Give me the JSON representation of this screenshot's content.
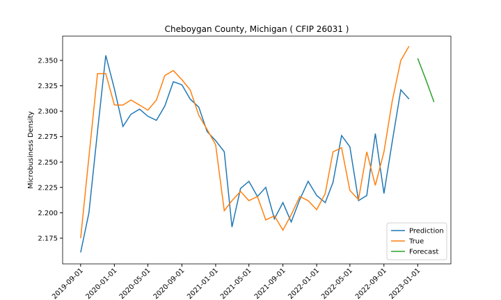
{
  "chart_data": {
    "type": "line",
    "title": "Cheboygan County, Michigan ( CFIP 26031 )",
    "y_label": "Microbusiness Density",
    "x": [
      "2019-09-01",
      "2019-10-01",
      "2019-11-01",
      "2019-12-01",
      "2020-01-01",
      "2020-02-01",
      "2020-03-01",
      "2020-04-01",
      "2020-05-01",
      "2020-06-01",
      "2020-07-01",
      "2020-08-01",
      "2020-09-01",
      "2020-10-01",
      "2020-11-01",
      "2020-12-01",
      "2021-01-01",
      "2021-02-01",
      "2021-03-01",
      "2021-04-01",
      "2021-05-01",
      "2021-06-01",
      "2021-07-01",
      "2021-08-01",
      "2021-09-01",
      "2021-10-01",
      "2021-11-01",
      "2021-12-01",
      "2022-01-01",
      "2022-02-01",
      "2022-03-01",
      "2022-04-01",
      "2022-05-01",
      "2022-06-01",
      "2022-07-01",
      "2022-08-01",
      "2022-09-01",
      "2022-10-01",
      "2022-11-01",
      "2022-12-01",
      "2023-01-01",
      "2023-02-01",
      "2023-03-01"
    ],
    "series": [
      {
        "name": "Prediction",
        "color": "#1f77b4",
        "values": [
          2.161,
          2.2,
          2.28,
          2.355,
          2.322,
          2.285,
          2.297,
          2.302,
          2.295,
          2.291,
          2.305,
          2.329,
          2.326,
          2.312,
          2.304,
          2.28,
          2.271,
          2.26,
          2.186,
          2.224,
          2.231,
          2.216,
          2.225,
          2.194,
          2.21,
          2.191,
          2.213,
          2.231,
          2.217,
          2.21,
          2.23,
          2.276,
          2.265,
          2.212,
          2.217,
          2.278,
          2.219,
          2.27,
          2.321,
          2.312,
          null,
          null,
          null
        ]
      },
      {
        "name": "True",
        "color": "#ff7f0e",
        "values": [
          2.175,
          2.255,
          2.337,
          2.337,
          2.306,
          2.306,
          2.311,
          2.306,
          2.301,
          2.311,
          2.335,
          2.34,
          2.331,
          2.321,
          2.296,
          2.282,
          2.267,
          2.202,
          2.212,
          2.221,
          2.212,
          2.216,
          2.193,
          2.197,
          2.183,
          2.198,
          2.216,
          2.212,
          2.203,
          2.219,
          2.26,
          2.264,
          2.222,
          2.213,
          2.26,
          2.227,
          2.26,
          2.31,
          2.35,
          2.364,
          null,
          null,
          null
        ]
      },
      {
        "name": "Forecast",
        "color": "#2ca02c",
        "values": [
          null,
          null,
          null,
          null,
          null,
          null,
          null,
          null,
          null,
          null,
          null,
          null,
          null,
          null,
          null,
          null,
          null,
          null,
          null,
          null,
          null,
          null,
          null,
          null,
          null,
          null,
          null,
          null,
          null,
          null,
          null,
          null,
          null,
          null,
          null,
          null,
          null,
          null,
          null,
          null,
          2.352,
          2.33,
          2.309
        ]
      }
    ],
    "xlim": [
      "2019-06-28",
      "2023-05-01"
    ],
    "xticks": [
      "2019-09-01",
      "2020-01-01",
      "2020-05-01",
      "2020-09-01",
      "2021-01-01",
      "2021-05-01",
      "2021-09-01",
      "2022-01-01",
      "2022-05-01",
      "2022-09-01",
      "2023-01-01"
    ],
    "ylim": [
      2.1497,
      2.3739
    ],
    "yticks": [
      2.175,
      {
        "value": 2.2,
        "label": "2.200"
      },
      2.225,
      {
        "value": 2.25,
        "label": "2.250"
      },
      2.275,
      {
        "value": 2.3,
        "label": "2.300"
      },
      2.325,
      {
        "value": 2.35,
        "label": "2.350"
      }
    ],
    "legend": "lower right"
  }
}
